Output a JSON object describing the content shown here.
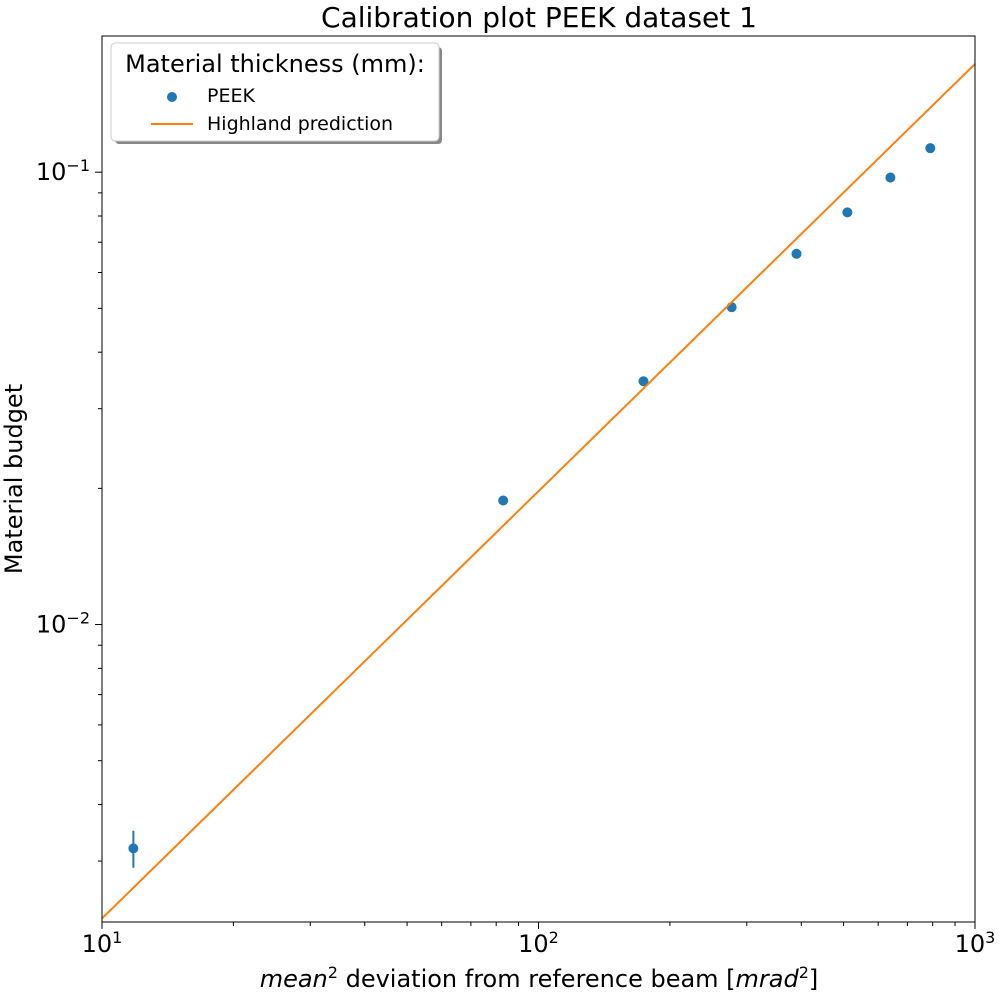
{
  "chart_data": {
    "type": "scatter",
    "title": "Calibration plot PEEK dataset 1",
    "xlabel": {
      "prefix": "mean",
      "prefix_sup": "2",
      "middle": " deviation from reference beam [",
      "unit": "mrad",
      "unit_sup": "2",
      "suffix": "]"
    },
    "ylabel": "Material budget",
    "xscale": "log",
    "yscale": "log",
    "xlim": [
      10,
      1000
    ],
    "ylim": [
      0.0022,
      0.2
    ],
    "x_ticks": [
      {
        "value": 10,
        "base": "10",
        "exp": "1"
      },
      {
        "value": 100,
        "base": "10",
        "exp": "2"
      },
      {
        "value": 1000,
        "base": "10",
        "exp": "3"
      }
    ],
    "y_ticks": [
      {
        "value": 0.01,
        "base": "10",
        "exp": "−2"
      },
      {
        "value": 0.1,
        "base": "10",
        "exp": "−1"
      }
    ],
    "grid": false,
    "legend": {
      "title": "Material thickness (mm):",
      "placement": "top-left"
    },
    "series": [
      {
        "name": "PEEK",
        "kind": "scatter",
        "color": "#1f77b4",
        "points": [
          {
            "x": 11.8,
            "y": 0.0032,
            "yerr": 0.0003
          },
          {
            "x": 83,
            "y": 0.0188
          },
          {
            "x": 174,
            "y": 0.0345
          },
          {
            "x": 277,
            "y": 0.0503
          },
          {
            "x": 390,
            "y": 0.066
          },
          {
            "x": 510,
            "y": 0.0815
          },
          {
            "x": 640,
            "y": 0.0973
          },
          {
            "x": 790,
            "y": 0.113
          }
        ]
      },
      {
        "name": "Highland prediction",
        "kind": "line",
        "color": "#ff7f0e",
        "points": [
          {
            "x": 10,
            "y": 0.00224
          },
          {
            "x": 1000,
            "y": 0.1735
          }
        ]
      }
    ]
  }
}
